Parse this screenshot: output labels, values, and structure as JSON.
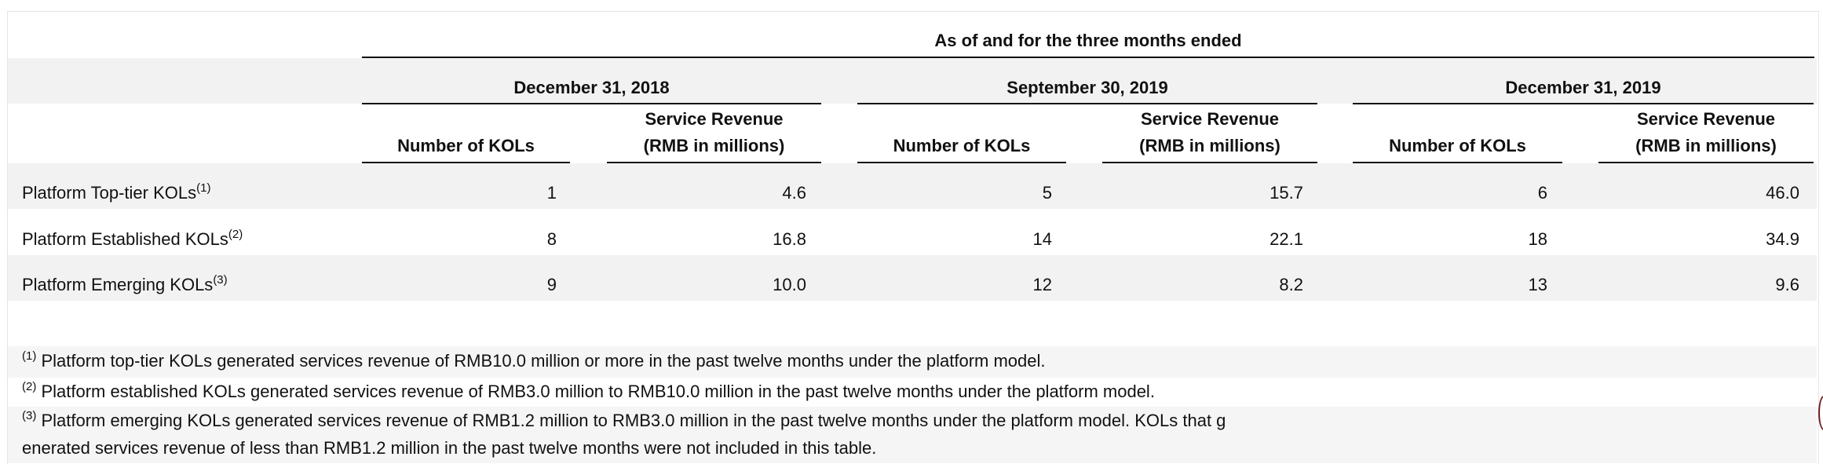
{
  "table": {
    "top_header": "As of and for the three months ended",
    "periods": [
      "December 31, 2018",
      "September 30, 2019",
      "December 31, 2019"
    ],
    "col_number": "Number of KOLs",
    "col_revenue_line1": "Service Revenue",
    "col_revenue_line2": "(RMB in millions)",
    "rows": [
      {
        "label": "Platform Top-tier KOLs",
        "sup": "(1)",
        "values": [
          "1",
          "4.6",
          "5",
          "15.7",
          "6",
          "46.0"
        ]
      },
      {
        "label": "Platform Established KOLs",
        "sup": "(2)",
        "values": [
          "8",
          "16.8",
          "14",
          "22.1",
          "18",
          "34.9"
        ]
      },
      {
        "label": "Platform Emerging KOLs",
        "sup": "(3)",
        "values": [
          "9",
          "10.0",
          "12",
          "8.2",
          "13",
          "9.6"
        ]
      }
    ]
  },
  "footnotes": [
    {
      "sup": "(1)",
      "text": "Platform top-tier KOLs generated services revenue of RMB10.0 million or more in the past twelve months under the platform model."
    },
    {
      "sup": "(2)",
      "text": "Platform established KOLs generated services revenue of RMB3.0 million to RMB10.0 million in the past twelve months under the platform model."
    },
    {
      "sup": "(3)",
      "text": "Platform emerging KOLs generated services revenue of RMB1.2 million to RMB3.0 million in the past twelve months under the platform model. KOLs that g",
      "text_cont": "enerated services revenue of less than RMB1.2 million in the past twelve months were not included in this table."
    }
  ]
}
